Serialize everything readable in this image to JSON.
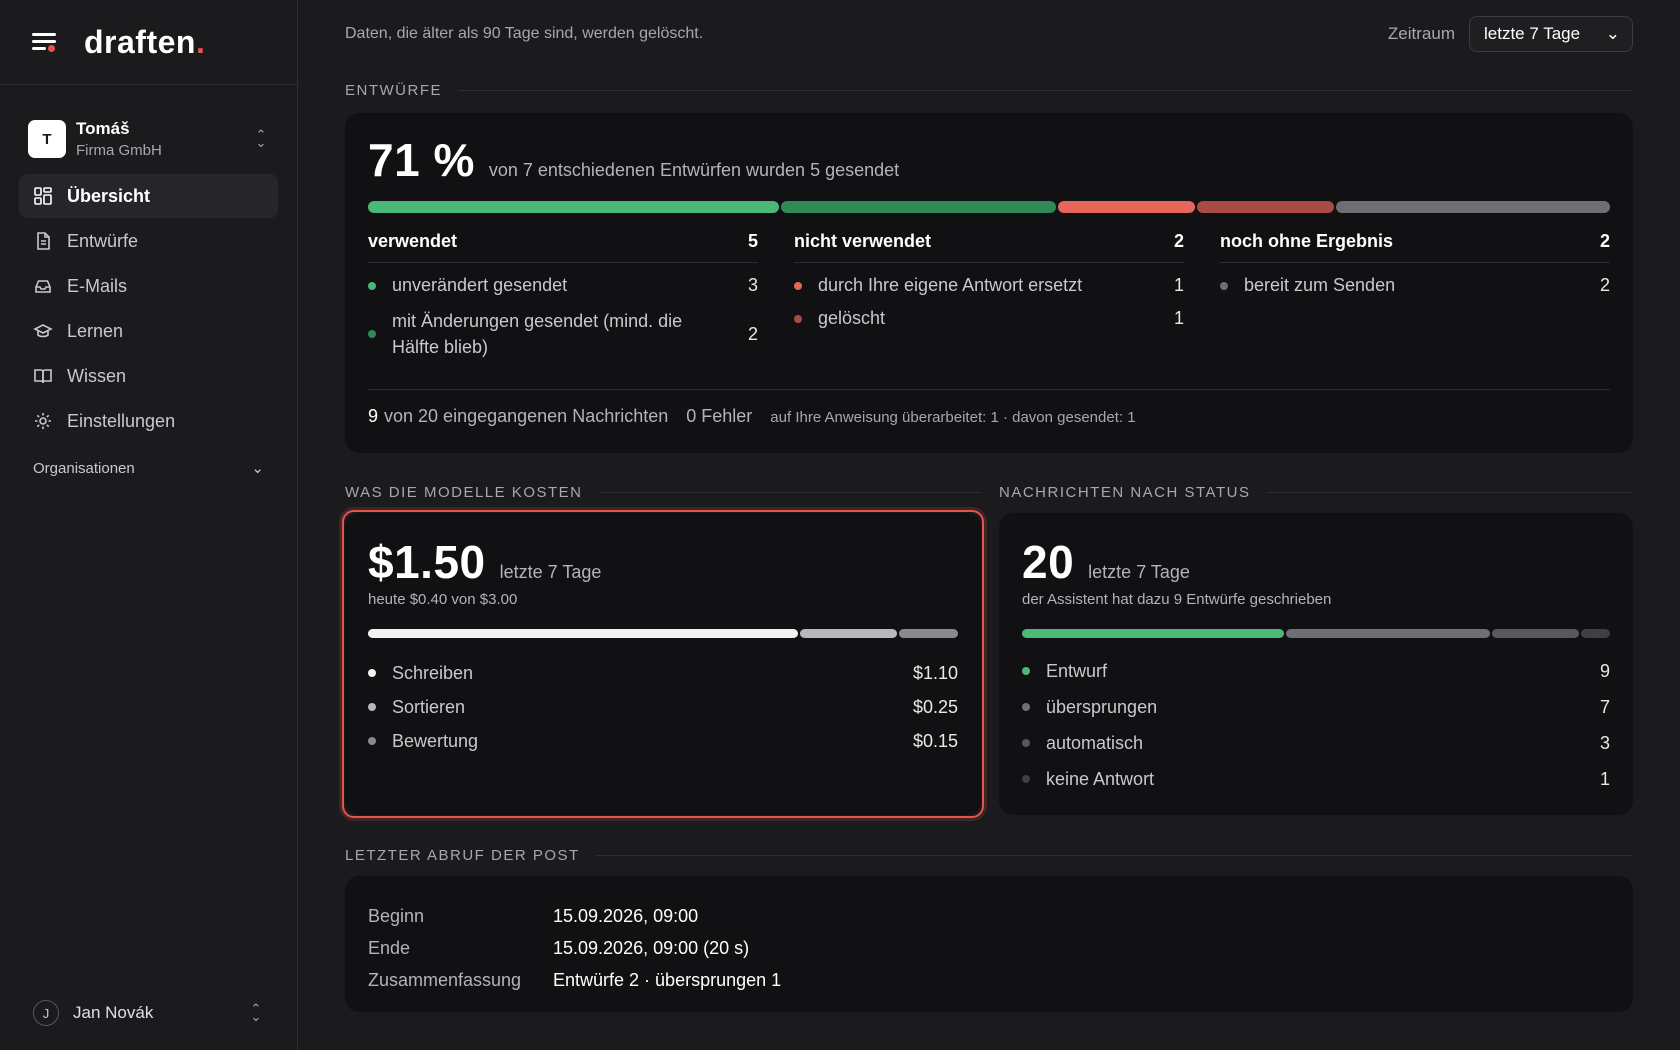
{
  "brand": {
    "name": "draften",
    "accent": "."
  },
  "account": {
    "initial": "T",
    "name": "Tomáš",
    "org": "Firma GmbH"
  },
  "nav": [
    {
      "label": "Übersicht",
      "icon": "dashboard-icon",
      "active": true
    },
    {
      "label": "Entwürfe",
      "icon": "document-icon",
      "active": false
    },
    {
      "label": "E-Mails",
      "icon": "inbox-icon",
      "active": false
    },
    {
      "label": "Lernen",
      "icon": "graduation-cap-icon",
      "active": false
    },
    {
      "label": "Wissen",
      "icon": "book-icon",
      "active": false
    },
    {
      "label": "Einstellungen",
      "icon": "gear-icon",
      "active": false
    }
  ],
  "organisations_label": "Organisationen",
  "user": {
    "initial": "J",
    "name": "Jan Novák"
  },
  "topbar": {
    "retention": "Daten, die älter als 90 Tage sind, werden gelöscht.",
    "range_label": "Zeitraum",
    "range_value": "letzte 7 Tage"
  },
  "drafts": {
    "section_title": "ENTWÜRFE",
    "percent": "71 %",
    "caption": "von 7 entschiedenen Entwürfen wurden 5 gesendet",
    "used": {
      "title": "verwendet",
      "total": "5",
      "items": [
        {
          "label": "unverändert gesendet",
          "value": "3"
        },
        {
          "label": "mit Änderungen gesendet (mind. die Hälfte blieb)",
          "value": "2"
        }
      ]
    },
    "unused": {
      "title": "nicht verwendet",
      "total": "2",
      "items": [
        {
          "label": "durch Ihre eigene Antwort ersetzt",
          "value": "1"
        },
        {
          "label": "gelöscht",
          "value": "1"
        }
      ]
    },
    "pending": {
      "title": "noch ohne Ergebnis",
      "total": "2",
      "items": [
        {
          "label": "bereit zum Senden",
          "value": "2"
        }
      ]
    },
    "footer": {
      "received_count": "9",
      "received_text": "von 20 eingegangenen Nachrichten",
      "errors": "0 Fehler",
      "revised": "auf Ihre Anweisung überarbeitet: 1 · davon gesendet: 1"
    },
    "colors": {
      "used_unchanged": "#4bb87a",
      "used_changed": "#2f8a57",
      "unused_replaced": "#e5675c",
      "unused_deleted": "#a94a45",
      "pending": "#6e6e74"
    }
  },
  "costs": {
    "section_title": "WAS DIE MODELLE KOSTEN",
    "total": "$1.50",
    "period": "letzte 7 Tage",
    "today": "heute $0.40 von $3.00",
    "items": [
      {
        "label": "Schreiben",
        "value": "$1.10",
        "amount": 1.1,
        "color": "#f2f2f2"
      },
      {
        "label": "Sortieren",
        "value": "$0.25",
        "amount": 0.25,
        "color": "#b8b8bb"
      },
      {
        "label": "Bewertung",
        "value": "$0.15",
        "amount": 0.15,
        "color": "#8a8a8e"
      }
    ]
  },
  "messages": {
    "section_title": "NACHRICHTEN NACH STATUS",
    "total": "20",
    "period": "letzte 7 Tage",
    "sub": "der Assistent hat dazu 9 Entwürfe geschrieben",
    "items": [
      {
        "label": "Entwurf",
        "value": "9",
        "count": 9,
        "color": "#4bb87a"
      },
      {
        "label": "übersprungen",
        "value": "7",
        "count": 7,
        "color": "#6e6e74"
      },
      {
        "label": "automatisch",
        "value": "3",
        "count": 3,
        "color": "#58585d"
      },
      {
        "label": "keine Antwort",
        "value": "1",
        "count": 1,
        "color": "#3f3f44"
      }
    ]
  },
  "fetch": {
    "section_title": "LETZTER ABRUF DER POST",
    "rows": [
      {
        "label": "Beginn",
        "value": "15.09.2026, 09:00"
      },
      {
        "label": "Ende",
        "value": "15.09.2026, 09:00 (20 s)"
      },
      {
        "label": "Zusammenfassung",
        "value": "Entwürfe 2 · übersprungen 1"
      }
    ]
  }
}
